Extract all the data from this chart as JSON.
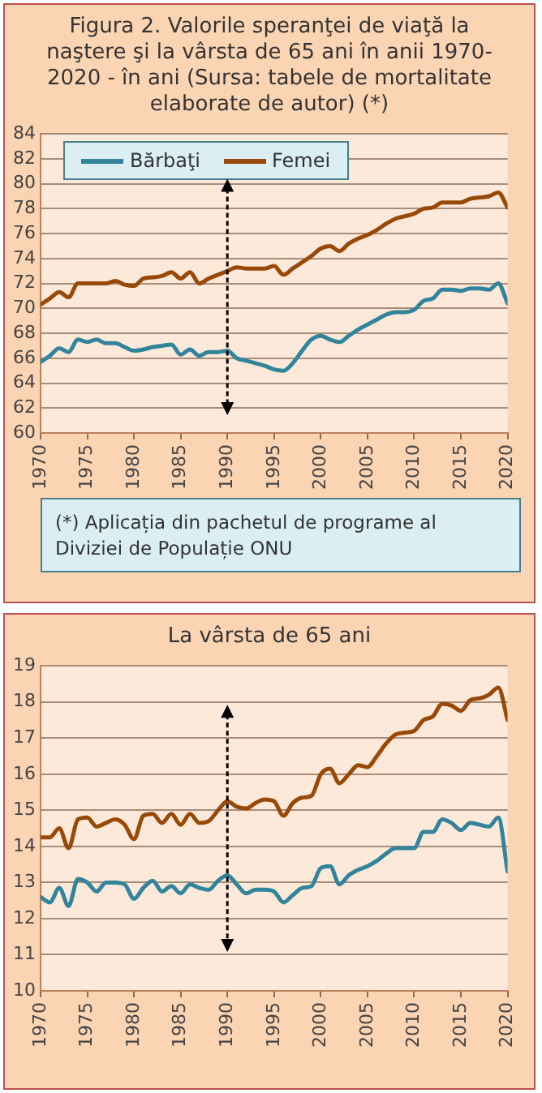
{
  "chart_data": [
    {
      "type": "line",
      "title": "Figura 2. Valorile speranţei de viaţă la naştere şi la vârsta de 65 ani în anii 1970-2020 - în ani (Sursa: tabele de mortalitate elaborate de autor)  (*)",
      "x": [
        1970,
        1971,
        1972,
        1973,
        1974,
        1975,
        1976,
        1977,
        1978,
        1979,
        1980,
        1981,
        1982,
        1983,
        1984,
        1985,
        1986,
        1987,
        1988,
        1989,
        1990,
        1991,
        1992,
        1993,
        1994,
        1995,
        1996,
        1997,
        1998,
        1999,
        2000,
        2001,
        2002,
        2003,
        2004,
        2005,
        2006,
        2007,
        2008,
        2009,
        2010,
        2011,
        2012,
        2013,
        2014,
        2015,
        2016,
        2017,
        2018,
        2019,
        2020
      ],
      "series": [
        {
          "name": "Bărbaţi",
          "color": "#31849b",
          "values": [
            65.7,
            66.2,
            66.8,
            66.5,
            67.5,
            67.3,
            67.5,
            67.2,
            67.2,
            66.9,
            66.6,
            66.7,
            66.9,
            67.0,
            67.1,
            66.3,
            66.7,
            66.2,
            66.5,
            66.5,
            66.6,
            66.0,
            65.8,
            65.6,
            65.4,
            65.1,
            65.0,
            65.6,
            66.6,
            67.5,
            67.8,
            67.5,
            67.3,
            67.8,
            68.3,
            68.7,
            69.1,
            69.5,
            69.7,
            69.7,
            69.9,
            70.6,
            70.8,
            71.5,
            71.5,
            71.4,
            71.6,
            71.6,
            71.5,
            72.0,
            70.4
          ]
        },
        {
          "name": "Femei",
          "color": "#984807",
          "values": [
            70.3,
            70.8,
            71.3,
            70.9,
            72.0,
            72.0,
            72.0,
            72.0,
            72.2,
            71.9,
            71.8,
            72.4,
            72.5,
            72.6,
            72.9,
            72.4,
            72.9,
            72.0,
            72.4,
            72.7,
            73.0,
            73.3,
            73.2,
            73.2,
            73.2,
            73.4,
            72.7,
            73.2,
            73.7,
            74.2,
            74.8,
            75.0,
            74.6,
            75.2,
            75.6,
            75.9,
            76.3,
            76.8,
            77.2,
            77.4,
            77.6,
            78.0,
            78.1,
            78.5,
            78.5,
            78.5,
            78.8,
            78.9,
            79.0,
            79.3,
            78.1
          ]
        }
      ],
      "xlim": [
        1970,
        2020
      ],
      "xticks": [
        1970,
        1975,
        1980,
        1985,
        1990,
        1995,
        2000,
        2005,
        2010,
        2015,
        2020
      ],
      "ylim": [
        60,
        84
      ],
      "yticks": [
        60,
        62,
        64,
        66,
        68,
        70,
        72,
        74,
        76,
        78,
        80,
        82,
        84
      ],
      "grid": "y",
      "legend": "top left",
      "marker": "none",
      "line_style": "solid",
      "annotations": [
        "(*)  Aplicația din pachetul de programe al Diviziei de Populație ONU"
      ]
    },
    {
      "type": "line",
      "title": "La vârsta de 65 ani",
      "x": [
        1970,
        1971,
        1972,
        1973,
        1974,
        1975,
        1976,
        1977,
        1978,
        1979,
        1980,
        1981,
        1982,
        1983,
        1984,
        1985,
        1986,
        1987,
        1988,
        1989,
        1990,
        1991,
        1992,
        1993,
        1994,
        1995,
        1996,
        1997,
        1998,
        1999,
        2000,
        2001,
        2002,
        2003,
        2004,
        2005,
        2006,
        2007,
        2008,
        2009,
        2010,
        2011,
        2012,
        2013,
        2014,
        2015,
        2016,
        2017,
        2018,
        2019,
        2020
      ],
      "series": [
        {
          "color": "#31849b",
          "values": [
            12.6,
            12.45,
            12.85,
            12.35,
            13.1,
            13.0,
            12.75,
            13.0,
            13.0,
            12.95,
            12.55,
            12.85,
            13.05,
            12.75,
            12.9,
            12.7,
            12.95,
            12.85,
            12.8,
            13.05,
            13.2,
            12.95,
            12.7,
            12.8,
            12.8,
            12.75,
            12.45,
            12.65,
            12.85,
            12.9,
            13.4,
            13.45,
            12.95,
            13.2,
            13.35,
            13.45,
            13.6,
            13.8,
            13.95,
            13.95,
            13.95,
            14.4,
            14.4,
            14.75,
            14.65,
            14.45,
            14.65,
            14.6,
            14.55,
            14.8,
            13.3
          ]
        },
        {
          "color": "#984807",
          "values": [
            14.25,
            14.25,
            14.5,
            13.95,
            14.75,
            14.8,
            14.55,
            14.65,
            14.75,
            14.6,
            14.2,
            14.85,
            14.9,
            14.65,
            14.9,
            14.6,
            14.9,
            14.65,
            14.7,
            15.0,
            15.25,
            15.1,
            15.05,
            15.2,
            15.3,
            15.25,
            14.85,
            15.2,
            15.35,
            15.4,
            16.0,
            16.15,
            15.75,
            16.0,
            16.25,
            16.2,
            16.5,
            16.85,
            17.1,
            17.15,
            17.2,
            17.5,
            17.6,
            17.95,
            17.9,
            17.75,
            18.05,
            18.1,
            18.2,
            18.4,
            17.5
          ]
        }
      ],
      "xlim": [
        1970,
        2020
      ],
      "xticks": [
        1970,
        1975,
        1980,
        1985,
        1990,
        1995,
        2000,
        2005,
        2010,
        2015,
        2020
      ],
      "ylim": [
        10,
        19
      ],
      "yticks": [
        10,
        11,
        12,
        13,
        14,
        15,
        16,
        17,
        18,
        19
      ],
      "grid": "y",
      "marker": "none",
      "line_style": "solid"
    }
  ]
}
